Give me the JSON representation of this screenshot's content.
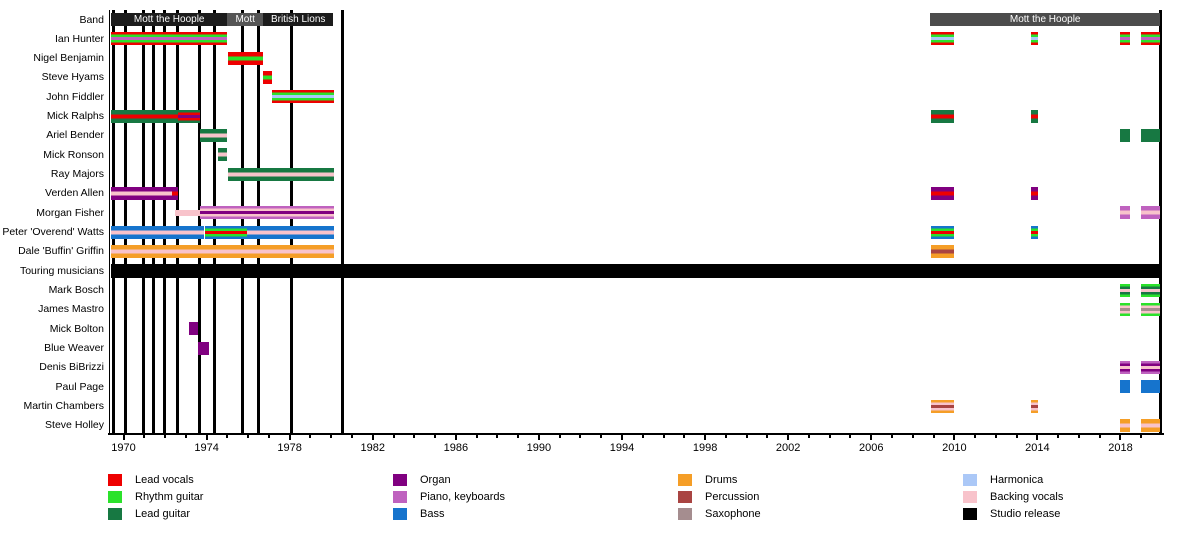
{
  "chart_data": {
    "type": "timeline",
    "description": "Mott the Hoople band members timeline",
    "x_axis": {
      "min": 1969.35,
      "max": 2019.95,
      "major_ticks": [
        1970,
        1974,
        1978,
        1982,
        1986,
        1990,
        1994,
        1998,
        2002,
        2006,
        2010,
        2014,
        2018
      ],
      "minor_tick_interval": 1
    },
    "role_colors": {
      "lead_vocals": "#ee0000",
      "rhythm_guitar": "#2be22b",
      "lead_guitar": "#177842",
      "organ": "#800080",
      "piano_keyboards": "#bf62bf",
      "bass": "#1674cd",
      "drums": "#f59e27",
      "percussion": "#a94442",
      "saxophone": "#a58d8f",
      "harmonica": "#abc8f7",
      "backing_vocals": "#f8c3cb",
      "studio_release": "#000000"
    },
    "band_row": {
      "label": "Band",
      "segments": [
        {
          "label": "Mott the Hoople",
          "start": 1969.4,
          "end": 1975.0,
          "color": "#1c1c1c"
        },
        {
          "label": "Mott",
          "start": 1975.0,
          "end": 1976.72,
          "color": "#555555"
        },
        {
          "label": "British Lions",
          "start": 1976.72,
          "end": 1980.1,
          "color": "#1c1c1c"
        },
        {
          "label": "Mott the Hoople",
          "start": 2008.85,
          "end": 2019.9,
          "color": "#4c4c4c"
        }
      ]
    },
    "studio_release_years": [
      1969.5,
      1970.1,
      1970.95,
      1971.45,
      1971.95,
      1972.6,
      1973.65,
      1974.4,
      1975.75,
      1976.5,
      1978.1,
      1980.55
    ],
    "members": [
      {
        "name": "Ian Hunter",
        "bars": [
          {
            "start": 1969.4,
            "end": 1975.0,
            "stripes": [
              "lead_vocals",
              "rhythm_guitar",
              "piano_keyboards",
              "rhythm_guitar",
              "lead_vocals"
            ]
          },
          {
            "start": 2008.9,
            "end": 2010.0,
            "stripes": [
              "lead_vocals",
              "rhythm_guitar",
              "harmonica",
              "rhythm_guitar",
              "lead_vocals"
            ]
          },
          {
            "start": 2013.7,
            "end": 2014.05,
            "stripes": [
              "lead_vocals",
              "rhythm_guitar",
              "harmonica",
              "rhythm_guitar",
              "lead_vocals"
            ]
          },
          {
            "start": 2018.0,
            "end": 2018.45,
            "stripes": [
              "lead_vocals",
              "rhythm_guitar",
              "piano_keyboards",
              "rhythm_guitar",
              "lead_vocals"
            ]
          },
          {
            "start": 2019.0,
            "end": 2019.9,
            "stripes": [
              "lead_vocals",
              "rhythm_guitar",
              "piano_keyboards",
              "rhythm_guitar",
              "lead_vocals"
            ]
          }
        ]
      },
      {
        "name": "Nigel Benjamin",
        "bars": [
          {
            "start": 1975.03,
            "end": 1976.72,
            "stripes": [
              "lead_vocals",
              "rhythm_guitar",
              "lead_vocals"
            ]
          }
        ]
      },
      {
        "name": "Steve Hyams",
        "bars": [
          {
            "start": 1976.72,
            "end": 1977.15,
            "stripes": [
              "lead_vocals",
              "rhythm_guitar",
              "lead_vocals"
            ]
          }
        ]
      },
      {
        "name": "John Fiddler",
        "bars": [
          {
            "start": 1977.15,
            "end": 1980.15,
            "stripes": [
              "lead_vocals",
              "rhythm_guitar",
              "harmonica",
              "rhythm_guitar",
              "lead_vocals"
            ]
          }
        ]
      },
      {
        "name": "Mick Ralphs",
        "bars": [
          {
            "start": 1969.4,
            "end": 1972.62,
            "stripes": [
              "lead_guitar",
              "lead_vocals",
              "lead_guitar"
            ]
          },
          {
            "start": 1972.62,
            "end": 1973.68,
            "stripes": [
              "lead_guitar",
              "lead_vocals",
              "organ",
              "lead_vocals",
              "lead_guitar"
            ]
          },
          {
            "start": 2008.9,
            "end": 2010.0,
            "stripes": [
              "lead_guitar",
              "lead_vocals",
              "lead_guitar"
            ]
          },
          {
            "start": 2013.7,
            "end": 2014.05,
            "stripes": [
              "lead_guitar",
              "lead_vocals",
              "lead_guitar"
            ]
          }
        ]
      },
      {
        "name": "Ariel Bender",
        "bars": [
          {
            "start": 1973.68,
            "end": 1975.0,
            "stripes": [
              "lead_guitar",
              "backing_vocals",
              "lead_guitar"
            ]
          },
          {
            "start": 2018.0,
            "end": 2018.45,
            "stripes": [
              "lead_guitar"
            ]
          },
          {
            "start": 2019.0,
            "end": 2019.9,
            "stripes": [
              "lead_guitar"
            ]
          }
        ]
      },
      {
        "name": "Mick Ronson",
        "bars": [
          {
            "start": 1974.55,
            "end": 1975.0,
            "stripes": [
              "lead_guitar",
              "backing_vocals",
              "lead_guitar"
            ]
          }
        ]
      },
      {
        "name": "Ray Majors",
        "bars": [
          {
            "start": 1975.03,
            "end": 1980.15,
            "stripes": [
              "lead_guitar",
              "backing_vocals",
              "lead_guitar"
            ]
          }
        ]
      },
      {
        "name": "Verden Allen",
        "bars": [
          {
            "start": 1969.4,
            "end": 1972.33,
            "stripes": [
              "organ",
              "backing_vocals",
              "organ"
            ]
          },
          {
            "start": 1972.33,
            "end": 1972.62,
            "stripes": [
              "organ",
              "lead_vocals",
              "organ"
            ]
          },
          {
            "start": 2008.9,
            "end": 2010.0,
            "stripes": [
              "organ",
              "lead_vocals",
              "organ"
            ]
          },
          {
            "start": 2013.7,
            "end": 2014.05,
            "stripes": [
              "organ",
              "lead_vocals",
              "organ"
            ]
          }
        ]
      },
      {
        "name": "Morgan Fisher",
        "bars": [
          {
            "start": 1972.48,
            "end": 1973.68,
            "stripes": [
              "backing_vocals"
            ],
            "height": 6
          },
          {
            "start": 1973.68,
            "end": 1980.15,
            "stripes": [
              "piano_keyboards",
              "backing_vocals",
              "organ",
              "backing_vocals",
              "piano_keyboards"
            ]
          },
          {
            "start": 2018.0,
            "end": 2018.45,
            "stripes": [
              "piano_keyboards",
              "backing_vocals",
              "piano_keyboards"
            ]
          },
          {
            "start": 2019.0,
            "end": 2019.9,
            "stripes": [
              "piano_keyboards",
              "backing_vocals",
              "piano_keyboards"
            ]
          }
        ]
      },
      {
        "name": "Peter 'Overend' Watts",
        "bars": [
          {
            "start": 1969.4,
            "end": 1973.9,
            "stripes": [
              "bass",
              "backing_vocals",
              "bass"
            ]
          },
          {
            "start": 1973.9,
            "end": 1975.95,
            "stripes": [
              "bass",
              "rhythm_guitar",
              "lead_vocals",
              "rhythm_guitar",
              "bass"
            ]
          },
          {
            "start": 1975.95,
            "end": 1980.15,
            "stripes": [
              "bass",
              "backing_vocals",
              "bass"
            ]
          },
          {
            "start": 2008.9,
            "end": 2010.0,
            "stripes": [
              "bass",
              "rhythm_guitar",
              "lead_vocals",
              "rhythm_guitar",
              "bass"
            ]
          },
          {
            "start": 2013.7,
            "end": 2014.05,
            "stripes": [
              "bass",
              "rhythm_guitar",
              "lead_vocals",
              "rhythm_guitar",
              "bass"
            ]
          }
        ]
      },
      {
        "name": "Dale 'Buffin' Griffin",
        "bars": [
          {
            "start": 1969.4,
            "end": 1980.15,
            "stripes": [
              "drums",
              "backing_vocals",
              "drums"
            ]
          },
          {
            "start": 2008.9,
            "end": 2010.0,
            "stripes": [
              "drums",
              "percussion",
              "drums"
            ]
          }
        ]
      },
      {
        "name": "Touring musicians",
        "bars": [
          {
            "start": 1969.4,
            "end": 2019.9,
            "stripes": [
              "studio_release"
            ],
            "height": 14
          }
        ]
      },
      {
        "name": "Mark Bosch",
        "bars": [
          {
            "start": 2018.0,
            "end": 2018.45,
            "stripes": [
              "rhythm_guitar",
              "lead_guitar",
              "backing_vocals",
              "lead_guitar",
              "rhythm_guitar"
            ]
          },
          {
            "start": 2019.0,
            "end": 2019.9,
            "stripes": [
              "rhythm_guitar",
              "lead_guitar",
              "backing_vocals",
              "lead_guitar",
              "rhythm_guitar"
            ]
          }
        ]
      },
      {
        "name": "James Mastro",
        "bars": [
          {
            "start": 2018.0,
            "end": 2018.45,
            "stripes": [
              "rhythm_guitar",
              "backing_vocals",
              "saxophone",
              "backing_vocals",
              "rhythm_guitar"
            ]
          },
          {
            "start": 2019.0,
            "end": 2019.9,
            "stripes": [
              "rhythm_guitar",
              "backing_vocals",
              "saxophone",
              "backing_vocals",
              "rhythm_guitar"
            ]
          }
        ]
      },
      {
        "name": "Mick Bolton",
        "bars": [
          {
            "start": 1973.15,
            "end": 1973.59,
            "stripes": [
              "organ"
            ]
          }
        ]
      },
      {
        "name": "Blue Weaver",
        "bars": [
          {
            "start": 1973.59,
            "end": 1974.12,
            "stripes": [
              "organ"
            ]
          }
        ]
      },
      {
        "name": "Denis BiBrizzi",
        "bars": [
          {
            "start": 2018.0,
            "end": 2018.45,
            "stripes": [
              "piano_keyboards",
              "organ",
              "backing_vocals",
              "organ",
              "piano_keyboards"
            ]
          },
          {
            "start": 2019.0,
            "end": 2019.9,
            "stripes": [
              "piano_keyboards",
              "organ",
              "backing_vocals",
              "organ",
              "piano_keyboards"
            ]
          }
        ]
      },
      {
        "name": "Paul Page",
        "bars": [
          {
            "start": 2018.0,
            "end": 2018.45,
            "stripes": [
              "bass"
            ]
          },
          {
            "start": 2019.0,
            "end": 2019.9,
            "stripes": [
              "bass"
            ]
          }
        ]
      },
      {
        "name": "Martin Chambers",
        "bars": [
          {
            "start": 2008.9,
            "end": 2010.0,
            "stripes": [
              "drums",
              "backing_vocals",
              "percussion",
              "backing_vocals",
              "drums"
            ]
          },
          {
            "start": 2013.7,
            "end": 2014.05,
            "stripes": [
              "drums",
              "backing_vocals",
              "percussion",
              "backing_vocals",
              "drums"
            ]
          }
        ]
      },
      {
        "name": "Steve Holley",
        "bars": [
          {
            "start": 2018.0,
            "end": 2018.45,
            "stripes": [
              "drums",
              "backing_vocals",
              "drums"
            ]
          },
          {
            "start": 2019.0,
            "end": 2019.9,
            "stripes": [
              "drums",
              "backing_vocals",
              "drums"
            ]
          }
        ]
      }
    ],
    "legend": {
      "columns": [
        [
          {
            "label": "Lead vocals",
            "role": "lead_vocals"
          },
          {
            "label": "Rhythm guitar",
            "role": "rhythm_guitar"
          },
          {
            "label": "Lead guitar",
            "role": "lead_guitar"
          }
        ],
        [
          {
            "label": "Organ",
            "role": "organ"
          },
          {
            "label": "Piano, keyboards",
            "role": "piano_keyboards"
          },
          {
            "label": "Bass",
            "role": "bass"
          }
        ],
        [
          {
            "label": "Drums",
            "role": "drums"
          },
          {
            "label": "Percussion",
            "role": "percussion"
          },
          {
            "label": "Saxophone",
            "role": "saxophone"
          }
        ],
        [
          {
            "label": "Harmonica",
            "role": "harmonica"
          },
          {
            "label": "Backing vocals",
            "role": "backing_vocals"
          },
          {
            "label": "Studio release",
            "role": "studio_release"
          }
        ]
      ]
    }
  }
}
